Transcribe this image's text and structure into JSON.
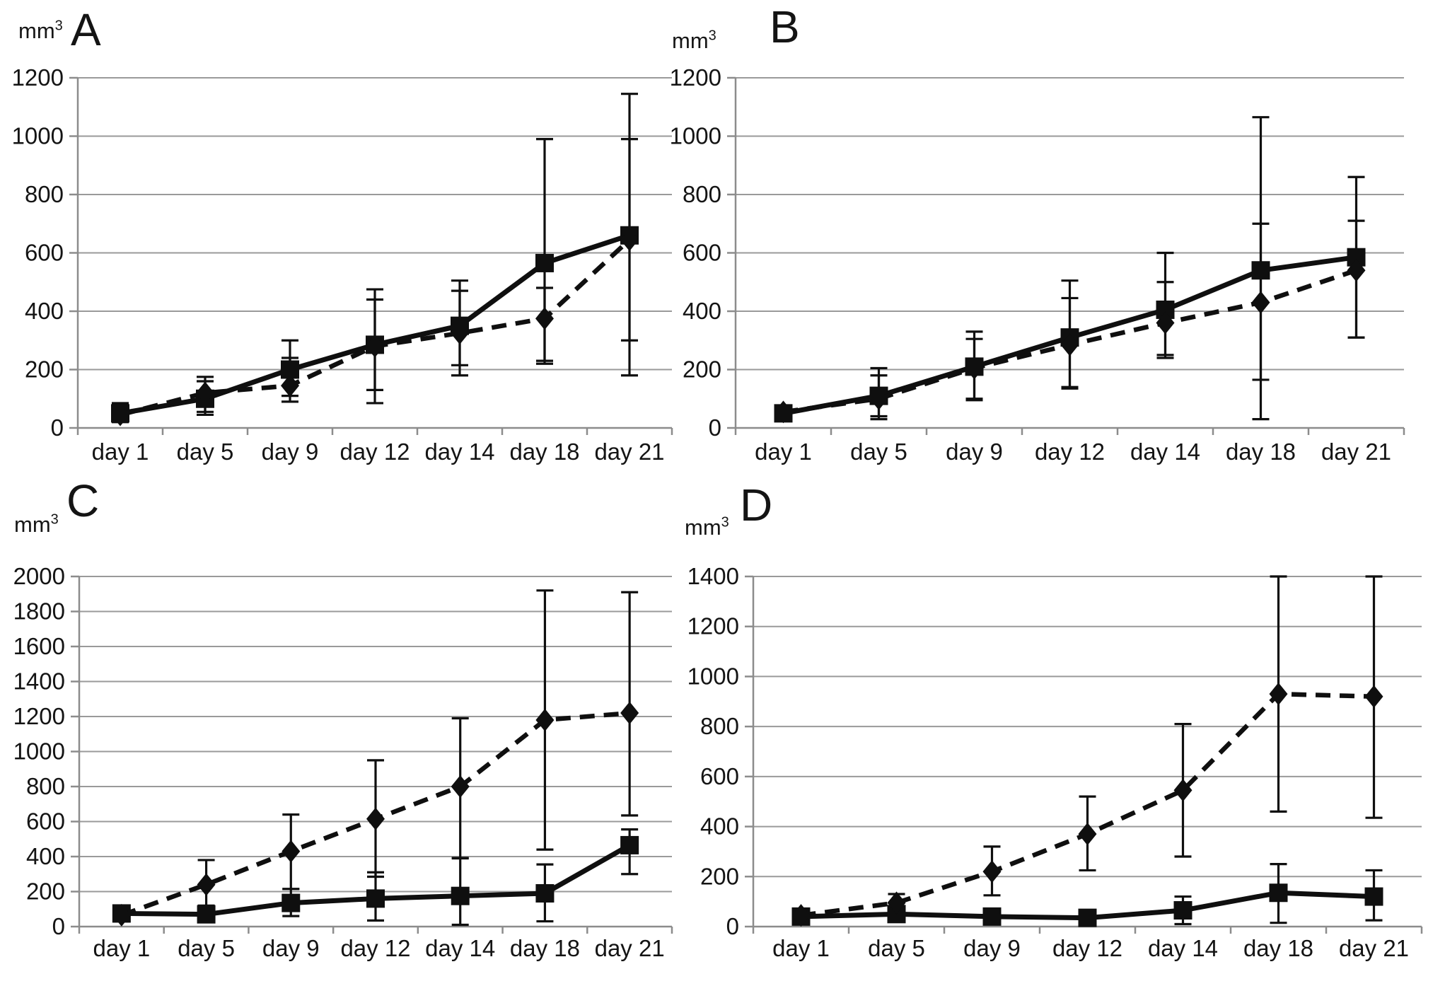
{
  "figure": {
    "background_color": "#ffffff",
    "ink_color": "#0f0f0f",
    "grid_color": "#9a9a9a",
    "axis_color": "#8c8c8c",
    "unit_label_base": "mm",
    "unit_label_sup": "3"
  },
  "chart_data": [
    {
      "type": "line",
      "title": "A",
      "ylabel": "mm³",
      "xlabel": "",
      "grid": true,
      "legend": "none",
      "categories": [
        "day 1",
        "day 5",
        "day 9",
        "day 12",
        "day 14",
        "day 18",
        "day 21"
      ],
      "ylim": [
        0,
        1200
      ],
      "ytick_step": 200,
      "yticks": [
        "0",
        "200",
        "400",
        "600",
        "800",
        "1000",
        "1200"
      ],
      "series": [
        {
          "name": "solid-squares",
          "line": "solid",
          "marker": "square",
          "values": [
            50,
            100,
            200,
            285,
            350,
            565,
            660
          ],
          "err_top": [
            85,
            175,
            300,
            475,
            505,
            990,
            990
          ],
          "err_bot": [
            25,
            45,
            110,
            85,
            180,
            230,
            300
          ]
        },
        {
          "name": "dashed-diamonds",
          "line": "dashed",
          "marker": "diamond",
          "values": [
            45,
            120,
            145,
            280,
            325,
            375,
            645
          ],
          "err_top": [
            75,
            160,
            240,
            440,
            470,
            480,
            1145
          ],
          "err_bot": [
            20,
            55,
            90,
            130,
            215,
            220,
            180
          ]
        }
      ]
    },
    {
      "type": "line",
      "title": "B",
      "ylabel": "mm³",
      "xlabel": "",
      "grid": true,
      "legend": "none",
      "categories": [
        "day 1",
        "day 5",
        "day 9",
        "day 12",
        "day 14",
        "day 18",
        "day 21"
      ],
      "ylim": [
        0,
        1200
      ],
      "ytick_step": 200,
      "yticks": [
        "0",
        "200",
        "400",
        "600",
        "800",
        "1000",
        "1200"
      ],
      "series": [
        {
          "name": "solid-squares",
          "line": "solid",
          "marker": "square",
          "values": [
            50,
            110,
            210,
            310,
            405,
            540,
            585
          ],
          "err_top": [
            70,
            205,
            330,
            505,
            600,
            1065,
            860
          ],
          "err_bot": [
            35,
            40,
            100,
            140,
            240,
            30,
            310
          ]
        },
        {
          "name": "dashed-diamonds",
          "line": "dashed",
          "marker": "diamond",
          "values": [
            55,
            100,
            205,
            285,
            360,
            430,
            540
          ],
          "err_top": [
            65,
            180,
            305,
            445,
            500,
            700,
            710
          ],
          "err_bot": [
            30,
            30,
            95,
            135,
            250,
            165,
            310
          ]
        }
      ]
    },
    {
      "type": "line",
      "title": "C",
      "ylabel": "mm³",
      "xlabel": "",
      "grid": true,
      "legend": "none",
      "categories": [
        "day 1",
        "day 5",
        "day 9",
        "day 12",
        "day 14",
        "day 18",
        "day 21"
      ],
      "ylim": [
        0,
        2000
      ],
      "ytick_step": 200,
      "yticks": [
        "0",
        "200",
        "400",
        "600",
        "800",
        "1000",
        "1200",
        "1400",
        "1600",
        "1800",
        "2000"
      ],
      "series": [
        {
          "name": "solid-squares",
          "line": "solid",
          "marker": "square",
          "values": [
            75,
            70,
            135,
            160,
            175,
            190,
            465
          ],
          "err_top": [
            105,
            120,
            215,
            310,
            390,
            355,
            555
          ],
          "err_bot": [
            45,
            25,
            60,
            35,
            10,
            30,
            300
          ]
        },
        {
          "name": "dashed-diamonds",
          "line": "dashed",
          "marker": "diamond",
          "values": [
            65,
            240,
            430,
            615,
            800,
            1180,
            1220
          ],
          "err_top": [
            100,
            380,
            640,
            950,
            1190,
            1920,
            1910
          ],
          "err_bot": [
            30,
            100,
            215,
            285,
            392,
            440,
            635
          ]
        }
      ]
    },
    {
      "type": "line",
      "title": "D",
      "ylabel": "mm³",
      "xlabel": "",
      "grid": true,
      "legend": "none",
      "categories": [
        "day 1",
        "day 5",
        "day 9",
        "day 12",
        "day 14",
        "day 18",
        "day 21"
      ],
      "ylim": [
        0,
        1400
      ],
      "ytick_step": 200,
      "yticks": [
        "0",
        "200",
        "400",
        "600",
        "800",
        "1000",
        "1200",
        "1400"
      ],
      "series": [
        {
          "name": "solid-squares",
          "line": "solid",
          "marker": "square",
          "values": [
            40,
            50,
            40,
            35,
            65,
            135,
            120
          ],
          "err_top": [
            55,
            95,
            60,
            55,
            120,
            250,
            225
          ],
          "err_bot": [
            25,
            20,
            20,
            15,
            10,
            15,
            25
          ]
        },
        {
          "name": "dashed-diamonds",
          "line": "dashed",
          "marker": "diamond",
          "values": [
            45,
            95,
            220,
            370,
            545,
            930,
            920
          ],
          "err_top": [
            60,
            130,
            320,
            520,
            810,
            1400,
            1400
          ],
          "err_bot": [
            30,
            35,
            125,
            225,
            280,
            460,
            435
          ]
        }
      ]
    }
  ]
}
